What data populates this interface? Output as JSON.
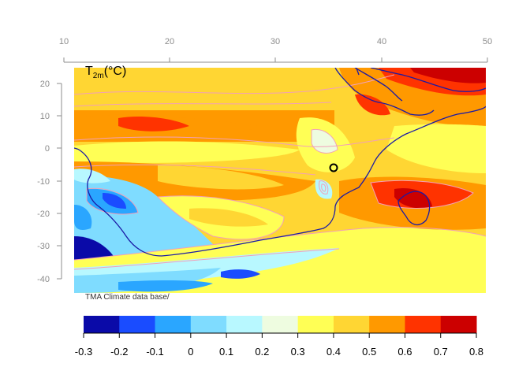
{
  "map": {
    "title_main": "T",
    "title_sub": "2m",
    "title_unit": "(°C)",
    "credit": "TMA Climate data base/",
    "lon_ticks": [
      "10",
      "20",
      "30",
      "40",
      "50"
    ],
    "lat_ticks": [
      "20",
      "10",
      "0",
      "-10",
      "-20",
      "-30",
      "-40"
    ],
    "marker": {
      "type": "circle",
      "lon": 35,
      "lat": -6
    },
    "coastline_color": "#1a1aa6",
    "contour_color": "#f2a0b8"
  },
  "legend": {
    "labels": [
      "-0.3",
      "-0.2",
      "-0.1",
      "0",
      "0.1",
      "0.2",
      "0.3",
      "0.4",
      "0.5",
      "0.6",
      "0.7",
      "0.8"
    ],
    "colors": [
      "#0a0aa8",
      "#1a4cff",
      "#2aa6ff",
      "#7fdcff",
      "#b8f8ff",
      "#eefce0",
      "#ffff55",
      "#ffd633",
      "#ff9900",
      "#ff3300",
      "#cc0000"
    ]
  }
}
